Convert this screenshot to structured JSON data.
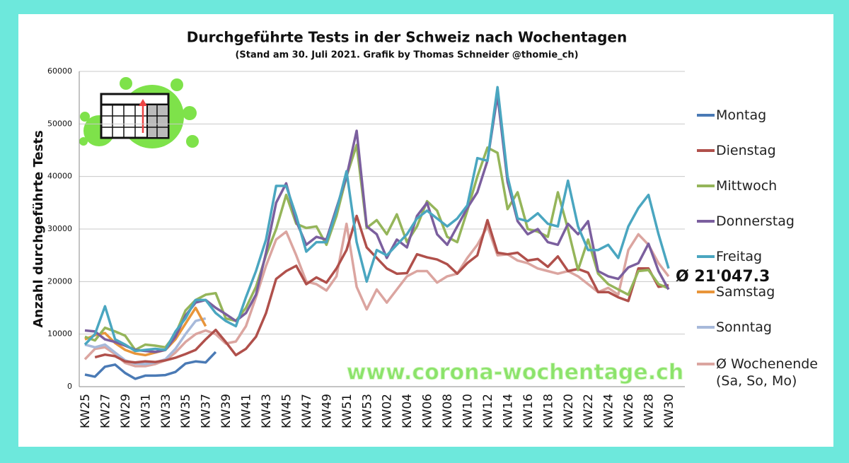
{
  "chart_data": {
    "type": "line",
    "title": "Durchgeführte Tests in der Schweiz nach Wochentagen",
    "subtitle": "(Stand am 30. Juli 2021. Grafik by Thomas Schneider @thomie_ch)",
    "y_label": "Anzahl durchgeführte Tests",
    "annotations": [
      "Ø 21'047.3",
      "www.corona-wochentage.ch"
    ],
    "categories": [
      "KW25",
      null,
      "KW27",
      null,
      "KW29",
      null,
      "KW31",
      null,
      "KW33",
      null,
      "KW35",
      null,
      "KW37",
      null,
      "KW39",
      null,
      "KW41",
      null,
      "KW43",
      null,
      "KW45",
      null,
      "KW47",
      null,
      "KW49",
      null,
      "KW51",
      null,
      "KW53",
      null,
      "KW02",
      null,
      "KW04",
      null,
      "KW06",
      null,
      "KW08",
      null,
      "KW10",
      null,
      "KW12",
      null,
      "KW14",
      null,
      "KW16",
      null,
      "KW18",
      null,
      "KW20",
      null,
      "KW22",
      null,
      "KW24",
      null,
      "KW26",
      null,
      "KW28",
      null,
      "KW30"
    ],
    "ylim": [
      0,
      60000
    ],
    "yticks": [
      0,
      10000,
      20000,
      30000,
      40000,
      50000,
      60000
    ],
    "grid": true,
    "legend": "right",
    "series": [
      {
        "name": "Montag",
        "color": "#4a7ab5",
        "values": [
          2300,
          1900,
          3800,
          4200,
          2600,
          1500,
          2100,
          2100,
          2200,
          2800,
          4400,
          4800,
          4600,
          6600,
          null,
          null,
          null,
          null,
          null,
          null,
          null,
          null,
          null,
          null,
          null,
          null,
          null,
          null,
          null,
          null,
          null,
          null,
          null,
          null,
          null,
          null,
          null,
          null,
          null,
          null,
          null,
          null,
          null,
          null,
          null,
          null,
          null,
          null,
          null,
          null,
          null,
          null,
          null,
          null,
          null,
          null,
          null,
          null,
          null
        ]
      },
      {
        "name": "Dienstag",
        "color": "#b0504b",
        "values": [
          null,
          5600,
          6100,
          5800,
          4800,
          4600,
          4800,
          4700,
          5000,
          5500,
          6200,
          7000,
          9000,
          10800,
          8500,
          6000,
          7200,
          9500,
          14000,
          20500,
          22000,
          23000,
          19500,
          20800,
          19800,
          22500,
          26000,
          32500,
          26500,
          24500,
          22500,
          21500,
          21600,
          25200,
          24600,
          24200,
          23300,
          21500,
          23500,
          25000,
          31700,
          25500,
          25200,
          25500,
          24000,
          24300,
          22800,
          24800,
          22000,
          22400,
          21700,
          18000,
          18000,
          17000,
          16300,
          22500,
          22500,
          19000,
          19300
        ]
      },
      {
        "name": "Mittwoch",
        "color": "#95b55a",
        "values": [
          9500,
          8800,
          11200,
          10500,
          9700,
          7000,
          8000,
          7800,
          7500,
          10000,
          14500,
          16500,
          17500,
          17800,
          13000,
          12500,
          15000,
          19000,
          25000,
          30000,
          36500,
          31000,
          30200,
          30500,
          27000,
          32500,
          40000,
          46000,
          30200,
          31700,
          29000,
          32800,
          27500,
          30500,
          35300,
          33500,
          28500,
          27500,
          33500,
          40000,
          45500,
          44500,
          33800,
          37000,
          30000,
          29500,
          28500,
          37000,
          30000,
          22200,
          28000,
          21500,
          19500,
          18500,
          17500,
          22000,
          22200,
          19500,
          18700
        ]
      },
      {
        "name": "Donnerstag",
        "color": "#7b5f9e",
        "values": [
          10700,
          10500,
          9000,
          8500,
          7800,
          7000,
          6800,
          6600,
          7000,
          9500,
          13500,
          16000,
          16500,
          15000,
          13800,
          12500,
          14000,
          17500,
          25500,
          35000,
          38700,
          31500,
          27000,
          28500,
          28000,
          34000,
          40000,
          48700,
          30500,
          29000,
          24500,
          28000,
          26500,
          32500,
          35000,
          29000,
          27000,
          30500,
          34000,
          37000,
          43000,
          55500,
          39000,
          31500,
          29000,
          30000,
          27500,
          27000,
          31000,
          29000,
          31500,
          22000,
          21000,
          20500,
          22700,
          23500,
          27200,
          22000,
          18500
        ]
      },
      {
        "name": "Freitag",
        "color": "#4aa6c0",
        "values": [
          8000,
          10000,
          15300,
          9000,
          8000,
          6800,
          7000,
          7200,
          7000,
          10500,
          13000,
          16500,
          16500,
          14000,
          12500,
          11500,
          17000,
          22000,
          28000,
          38200,
          38200,
          32500,
          25700,
          27500,
          27500,
          33500,
          41000,
          27500,
          20000,
          26000,
          25000,
          27000,
          29000,
          32000,
          33500,
          32000,
          30500,
          32000,
          34500,
          43500,
          43000,
          57000,
          40000,
          32000,
          31500,
          33000,
          31000,
          30500,
          39200,
          30500,
          26000,
          26000,
          27000,
          24500,
          30500,
          34000,
          36500,
          29000,
          22500
        ]
      },
      {
        "name": "Samstag",
        "color": "#e8953a",
        "values": [
          9000,
          9800,
          10200,
          8300,
          7000,
          6300,
          6000,
          6500,
          7000,
          9000,
          12000,
          15000,
          11500,
          null,
          null,
          null,
          null,
          null,
          null,
          null,
          null,
          null,
          null,
          null,
          null,
          null,
          null,
          null,
          null,
          null,
          null,
          null,
          null,
          null,
          null,
          null,
          null,
          null,
          null,
          null,
          null,
          null,
          null,
          null,
          null,
          null,
          null,
          null,
          null,
          null,
          null,
          null,
          null,
          null,
          null,
          null,
          null,
          null,
          null
        ]
      },
      {
        "name": "Sonntag",
        "color": "#a7b9da",
        "values": [
          8000,
          7500,
          8000,
          6500,
          5000,
          4400,
          4300,
          4600,
          5200,
          7200,
          10000,
          12500,
          13000,
          null,
          null,
          null,
          null,
          null,
          null,
          null,
          null,
          null,
          null,
          null,
          null,
          null,
          null,
          null,
          null,
          null,
          null,
          null,
          null,
          null,
          null,
          null,
          null,
          null,
          null,
          null,
          null,
          null,
          null,
          null,
          null,
          null,
          null,
          null,
          null,
          null,
          null,
          null,
          null,
          null,
          null,
          null,
          null,
          null,
          null
        ]
      },
      {
        "name": "Ø Wochenende (Sa, So, Mo)",
        "color": "#dba5a0",
        "values": [
          5200,
          7200,
          7500,
          6200,
          4500,
          3900,
          3900,
          4300,
          5000,
          6500,
          8500,
          10000,
          10700,
          10000,
          8200,
          8600,
          11500,
          17000,
          23000,
          28000,
          29500,
          25000,
          20000,
          19500,
          18300,
          21000,
          31000,
          19000,
          14700,
          18500,
          16000,
          18500,
          21000,
          22000,
          22000,
          19800,
          21000,
          21500,
          24500,
          27000,
          30500,
          25000,
          25200,
          24000,
          23500,
          22500,
          22000,
          21500,
          22000,
          21000,
          19500,
          18000,
          18800,
          17500,
          26000,
          29000,
          27000,
          23500,
          21000
        ]
      }
    ]
  }
}
